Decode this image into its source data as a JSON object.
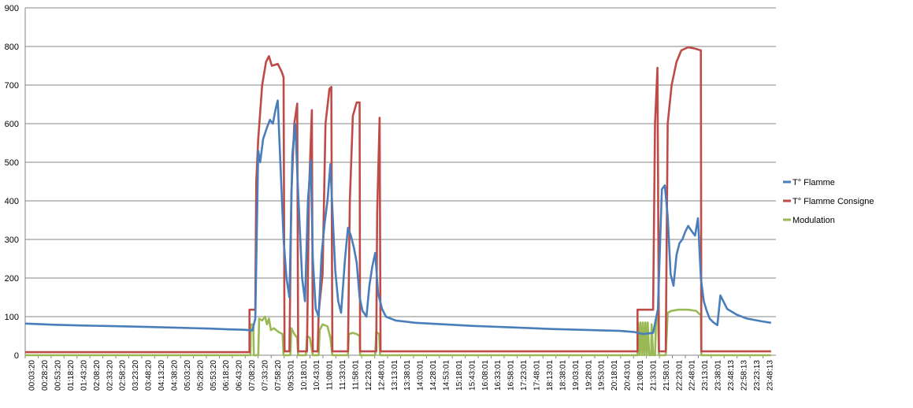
{
  "chart_data": {
    "type": "line",
    "ylim": [
      0,
      900
    ],
    "yticks": [
      0,
      100,
      200,
      300,
      400,
      500,
      600,
      700,
      800,
      900
    ],
    "x_tick_labels": [
      "00:03:20",
      "00:28:20",
      "00:53:20",
      "01:18:20",
      "01:43:20",
      "02:08:20",
      "02:33:20",
      "02:58:20",
      "03:23:20",
      "03:48:20",
      "04:13:20",
      "04:38:20",
      "05:03:20",
      "05:28:20",
      "05:53:20",
      "06:18:20",
      "06:43:20",
      "07:08:20",
      "07:33:20",
      "07:58:20",
      "09:53:01",
      "10:18:01",
      "10:43:01",
      "11:08:01",
      "11:33:01",
      "11:58:01",
      "12:23:01",
      "12:48:01",
      "13:13:01",
      "13:38:01",
      "14:03:01",
      "14:28:01",
      "14:53:01",
      "15:18:01",
      "15:43:01",
      "16:08:01",
      "16:33:01",
      "16:58:01",
      "17:23:01",
      "17:48:01",
      "18:13:01",
      "18:38:01",
      "19:03:01",
      "19:28:01",
      "19:53:01",
      "20:18:01",
      "20:43:01",
      "21:08:01",
      "21:33:01",
      "21:58:01",
      "22:23:01",
      "22:48:01",
      "23:13:01",
      "23:38:01",
      "23:48:13",
      "22:58:13",
      "23:23:13",
      "23:48:13"
    ],
    "grid": true,
    "legend_position": "right",
    "colors": {
      "T° Flamme": "#4a7ebb",
      "T° Flamme Consigne": "#be4b48",
      "Modulation": "#98b954"
    },
    "series": [
      {
        "name": "T° Flamme",
        "points": [
          [
            0,
            82
          ],
          [
            3,
            79
          ],
          [
            6,
            77
          ],
          [
            10,
            75
          ],
          [
            13,
            73
          ],
          [
            16,
            71
          ],
          [
            19,
            69
          ],
          [
            21,
            67
          ],
          [
            22.5,
            66
          ],
          [
            23.3,
            64
          ],
          [
            23.6,
            95
          ],
          [
            23.9,
            530
          ],
          [
            24.1,
            500
          ],
          [
            24.4,
            560
          ],
          [
            24.8,
            590
          ],
          [
            25.1,
            610
          ],
          [
            25.4,
            600
          ],
          [
            25.7,
            640
          ],
          [
            25.9,
            660
          ],
          [
            26.2,
            480
          ],
          [
            26.5,
            300
          ],
          [
            26.8,
            200
          ],
          [
            27.1,
            150
          ],
          [
            27.4,
            520
          ],
          [
            27.7,
            600
          ],
          [
            28.0,
            420
          ],
          [
            28.4,
            200
          ],
          [
            28.7,
            140
          ],
          [
            29.0,
            400
          ],
          [
            29.3,
            505
          ],
          [
            29.5,
            250
          ],
          [
            29.8,
            120
          ],
          [
            30.1,
            100
          ],
          [
            30.4,
            260
          ],
          [
            30.7,
            340
          ],
          [
            31.0,
            400
          ],
          [
            31.3,
            495
          ],
          [
            31.5,
            380
          ],
          [
            31.8,
            220
          ],
          [
            32.1,
            140
          ],
          [
            32.4,
            110
          ],
          [
            32.8,
            250
          ],
          [
            33.1,
            330
          ],
          [
            33.4,
            310
          ],
          [
            33.7,
            280
          ],
          [
            34.0,
            240
          ],
          [
            34.3,
            150
          ],
          [
            34.6,
            115
          ],
          [
            35.0,
            100
          ],
          [
            35.3,
            180
          ],
          [
            35.6,
            230
          ],
          [
            35.9,
            265
          ],
          [
            36.2,
            160
          ],
          [
            36.6,
            120
          ],
          [
            37.0,
            100
          ],
          [
            38,
            90
          ],
          [
            40,
            84
          ],
          [
            43,
            80
          ],
          [
            46,
            76
          ],
          [
            50,
            72
          ],
          [
            54,
            68
          ],
          [
            58,
            65
          ],
          [
            61,
            63
          ],
          [
            62.5,
            60
          ],
          [
            63.4,
            55
          ],
          [
            64.4,
            58
          ],
          [
            64.9,
            120
          ],
          [
            65.3,
            430
          ],
          [
            65.6,
            440
          ],
          [
            65.9,
            360
          ],
          [
            66.2,
            210
          ],
          [
            66.5,
            180
          ],
          [
            66.8,
            260
          ],
          [
            67.1,
            290
          ],
          [
            67.4,
            300
          ],
          [
            67.7,
            320
          ],
          [
            68.0,
            335
          ],
          [
            68.4,
            320
          ],
          [
            68.7,
            310
          ],
          [
            69.0,
            355
          ],
          [
            69.3,
            200
          ],
          [
            69.6,
            140
          ],
          [
            69.9,
            115
          ],
          [
            70.2,
            95
          ],
          [
            70.6,
            85
          ],
          [
            71.0,
            78
          ],
          [
            71.3,
            155
          ],
          [
            71.6,
            140
          ],
          [
            72,
            120
          ],
          [
            73,
            105
          ],
          [
            74,
            95
          ],
          [
            75.5,
            88
          ],
          [
            76.5,
            84
          ]
        ]
      },
      {
        "name": "T° Flamme Consigne",
        "points": [
          [
            0,
            8
          ],
          [
            23.0,
            8
          ],
          [
            23.0,
            118
          ],
          [
            23.6,
            118
          ],
          [
            23.7,
            450
          ],
          [
            23.9,
            560
          ],
          [
            24.3,
            700
          ],
          [
            24.7,
            760
          ],
          [
            25.0,
            775
          ],
          [
            25.3,
            750
          ],
          [
            25.9,
            755
          ],
          [
            26.3,
            735
          ],
          [
            26.5,
            720
          ],
          [
            26.6,
            10
          ],
          [
            27.1,
            10
          ],
          [
            27.3,
            420
          ],
          [
            27.6,
            600
          ],
          [
            27.9,
            652
          ],
          [
            28.0,
            10
          ],
          [
            28.9,
            10
          ],
          [
            29.1,
            420
          ],
          [
            29.4,
            635
          ],
          [
            29.5,
            10
          ],
          [
            30.0,
            10
          ],
          [
            30.1,
            110
          ],
          [
            30.5,
            210
          ],
          [
            30.8,
            600
          ],
          [
            31.2,
            690
          ],
          [
            31.4,
            695
          ],
          [
            31.5,
            10
          ],
          [
            33.1,
            10
          ],
          [
            33.3,
            400
          ],
          [
            33.6,
            620
          ],
          [
            34.0,
            655
          ],
          [
            34.3,
            655
          ],
          [
            34.35,
            10
          ],
          [
            36.0,
            10
          ],
          [
            36.1,
            370
          ],
          [
            36.35,
            615
          ],
          [
            36.45,
            10
          ],
          [
            62.8,
            10
          ],
          [
            62.8,
            118
          ],
          [
            64.4,
            118
          ],
          [
            64.6,
            600
          ],
          [
            64.85,
            745
          ],
          [
            65.0,
            10
          ],
          [
            65.7,
            10
          ],
          [
            65.9,
            600
          ],
          [
            66.3,
            700
          ],
          [
            66.8,
            760
          ],
          [
            67.3,
            790
          ],
          [
            68.0,
            798
          ],
          [
            68.6,
            795
          ],
          [
            69.3,
            790
          ],
          [
            69.35,
            10
          ],
          [
            76.5,
            10
          ]
        ]
      },
      {
        "name": "Modulation",
        "points": [
          [
            0,
            0
          ],
          [
            23.1,
            0
          ],
          [
            23.15,
            80
          ],
          [
            23.4,
            80
          ],
          [
            23.45,
            0
          ],
          [
            23.9,
            0
          ],
          [
            24.0,
            95
          ],
          [
            24.3,
            90
          ],
          [
            24.6,
            100
          ],
          [
            24.8,
            80
          ],
          [
            25.0,
            95
          ],
          [
            25.2,
            65
          ],
          [
            25.5,
            70
          ],
          [
            26.0,
            60
          ],
          [
            26.4,
            55
          ],
          [
            26.5,
            0
          ],
          [
            27.2,
            0
          ],
          [
            27.3,
            70
          ],
          [
            27.6,
            55
          ],
          [
            27.9,
            45
          ],
          [
            28.0,
            0
          ],
          [
            28.8,
            0
          ],
          [
            28.9,
            50
          ],
          [
            29.2,
            45
          ],
          [
            29.5,
            0
          ],
          [
            30.1,
            0
          ],
          [
            30.2,
            65
          ],
          [
            30.5,
            80
          ],
          [
            31.0,
            75
          ],
          [
            31.3,
            45
          ],
          [
            31.5,
            0
          ],
          [
            33.1,
            0
          ],
          [
            33.2,
            55
          ],
          [
            33.6,
            58
          ],
          [
            34.0,
            55
          ],
          [
            34.3,
            50
          ],
          [
            34.35,
            0
          ],
          [
            35.9,
            0
          ],
          [
            36.0,
            60
          ],
          [
            36.3,
            55
          ],
          [
            36.4,
            0
          ],
          [
            62.8,
            0
          ],
          [
            62.85,
            85
          ],
          [
            63.0,
            0
          ],
          [
            63.1,
            85
          ],
          [
            63.25,
            0
          ],
          [
            63.35,
            85
          ],
          [
            63.5,
            0
          ],
          [
            63.6,
            85
          ],
          [
            63.75,
            0
          ],
          [
            63.85,
            85
          ],
          [
            64.0,
            0
          ],
          [
            64.2,
            0
          ],
          [
            64.25,
            80
          ],
          [
            64.4,
            0
          ],
          [
            64.6,
            0
          ],
          [
            64.7,
            90
          ],
          [
            64.9,
            105
          ],
          [
            65.0,
            0
          ],
          [
            65.7,
            0
          ],
          [
            65.9,
            110
          ],
          [
            66.3,
            115
          ],
          [
            67.0,
            118
          ],
          [
            68.0,
            118
          ],
          [
            68.8,
            115
          ],
          [
            69.1,
            108
          ],
          [
            69.3,
            105
          ],
          [
            69.35,
            0
          ],
          [
            76.5,
            0
          ]
        ]
      }
    ],
    "x_count": 77
  }
}
